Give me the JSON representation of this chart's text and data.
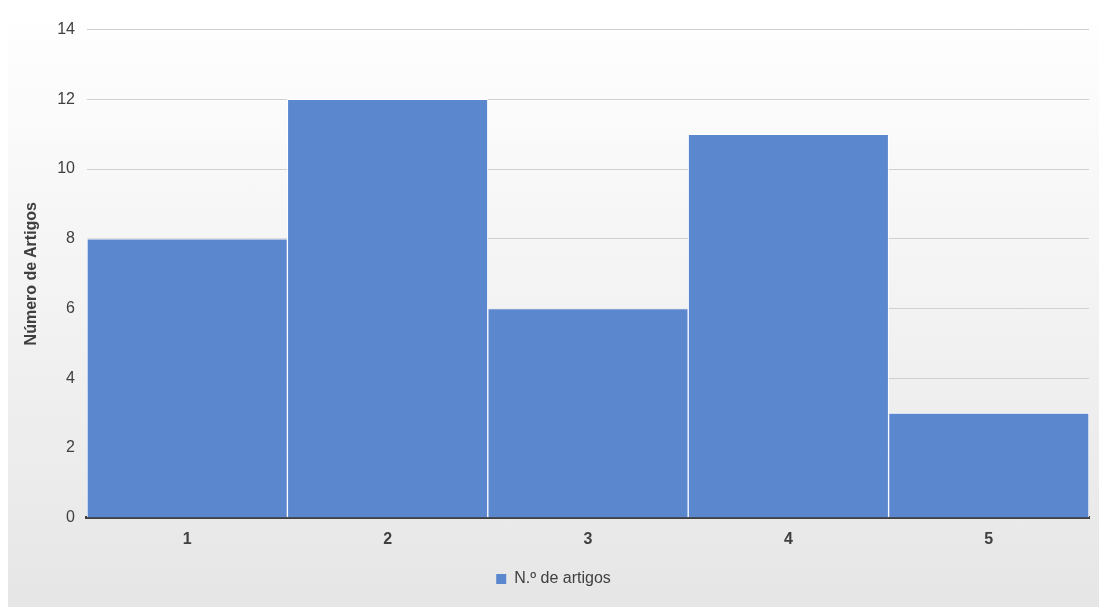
{
  "chart_data": {
    "type": "bar",
    "categories": [
      "1",
      "2",
      "3",
      "4",
      "5"
    ],
    "series": [
      {
        "name": "N.º de artigos",
        "color": "#5b87cf",
        "values": [
          8,
          12,
          6,
          11,
          3
        ]
      }
    ],
    "ylabel": "Número de Artigos",
    "ylim": [
      0,
      14
    ],
    "yticks": [
      0,
      2,
      4,
      6,
      8,
      10,
      12,
      14
    ],
    "grid": "y",
    "legend": "bottom"
  }
}
